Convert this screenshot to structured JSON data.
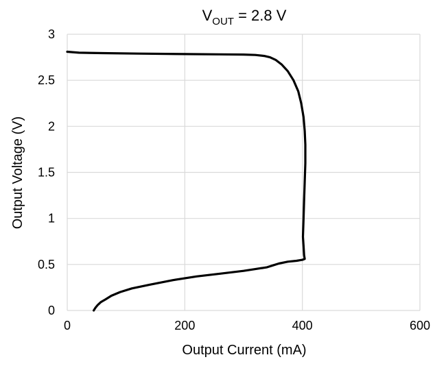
{
  "chart_data": {
    "type": "line",
    "title": {
      "main": "V",
      "subscript": "OUT",
      "rest": " = 2.8 V"
    },
    "xlabel": "Output Current (mA)",
    "ylabel": "Output Voltage (V)",
    "xlim": [
      0,
      600
    ],
    "ylim": [
      0,
      3
    ],
    "xticks": [
      0,
      200,
      400,
      600
    ],
    "xtick_labels": [
      "0",
      "200",
      "400",
      "600"
    ],
    "yticks": [
      0,
      0.5,
      1,
      1.5,
      2,
      2.5,
      3
    ],
    "ytick_labels": [
      "0",
      "0.5",
      "1",
      "1.5",
      "2",
      "2.5",
      "3"
    ],
    "grid": true,
    "legend": "none",
    "colors": {
      "line": "#000000",
      "grid": "#d9d9d9"
    },
    "series": [
      {
        "x": [
          0,
          20,
          60,
          120,
          200,
          260,
          300,
          320,
          335,
          345,
          355,
          365,
          375,
          385,
          393,
          398,
          402,
          404,
          405,
          405,
          404,
          403,
          402,
          401,
          402,
          403,
          404,
          400,
          390,
          375,
          360,
          350,
          340,
          320,
          300,
          260,
          220,
          180,
          140,
          110,
          90,
          75,
          65,
          57,
          52,
          48,
          46,
          45
        ],
        "y": [
          2.81,
          2.8,
          2.795,
          2.79,
          2.785,
          2.782,
          2.78,
          2.775,
          2.765,
          2.75,
          2.72,
          2.67,
          2.6,
          2.5,
          2.38,
          2.25,
          2.1,
          1.95,
          1.8,
          1.6,
          1.4,
          1.2,
          1.0,
          0.8,
          0.7,
          0.6,
          0.56,
          0.55,
          0.54,
          0.53,
          0.51,
          0.49,
          0.47,
          0.45,
          0.43,
          0.4,
          0.37,
          0.33,
          0.28,
          0.24,
          0.2,
          0.16,
          0.12,
          0.09,
          0.06,
          0.03,
          0.01,
          0.0
        ]
      }
    ]
  }
}
